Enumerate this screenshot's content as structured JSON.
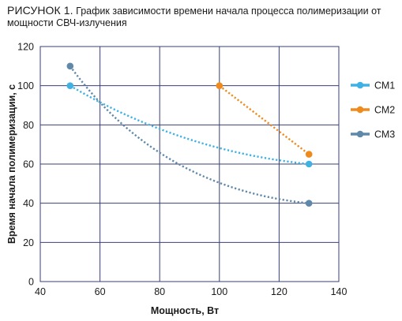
{
  "figure": {
    "title_lead": "РИСУНОК 1.",
    "title_text": "График зависимости времени начала процесса полимеризации от мощности СВЧ-излучения"
  },
  "chart_data": {
    "type": "line",
    "title": "РИСУНОК 1. График зависимости времени начала процесса полимеризации от мощности СВЧ-излучения",
    "xlabel": "Мощность, Вт",
    "ylabel": "Время начала полимеризации, с",
    "xlim": [
      40,
      140
    ],
    "ylim": [
      0,
      120
    ],
    "xticks": [
      40,
      60,
      80,
      100,
      120,
      140
    ],
    "yticks": [
      0,
      20,
      40,
      60,
      80,
      100,
      120
    ],
    "grid": true,
    "legend_position": "right",
    "series": [
      {
        "name": "СМ1",
        "color": "#3fb1e3",
        "points": [
          {
            "x": 50,
            "y": 100
          },
          {
            "x": 130,
            "y": 60
          }
        ],
        "curvature": 0.22
      },
      {
        "name": "СМ2",
        "color": "#f08a1c",
        "points": [
          {
            "x": 100,
            "y": 100
          },
          {
            "x": 130,
            "y": 65
          }
        ],
        "curvature": 0
      },
      {
        "name": "СМ3",
        "color": "#6088a8",
        "points": [
          {
            "x": 50,
            "y": 110
          },
          {
            "x": 130,
            "y": 40
          }
        ],
        "curvature": 0.45
      }
    ]
  },
  "colors": {
    "plot_background": "#ffffff",
    "grid": "#3a3f73",
    "axis_text": "#1a1a1a"
  }
}
